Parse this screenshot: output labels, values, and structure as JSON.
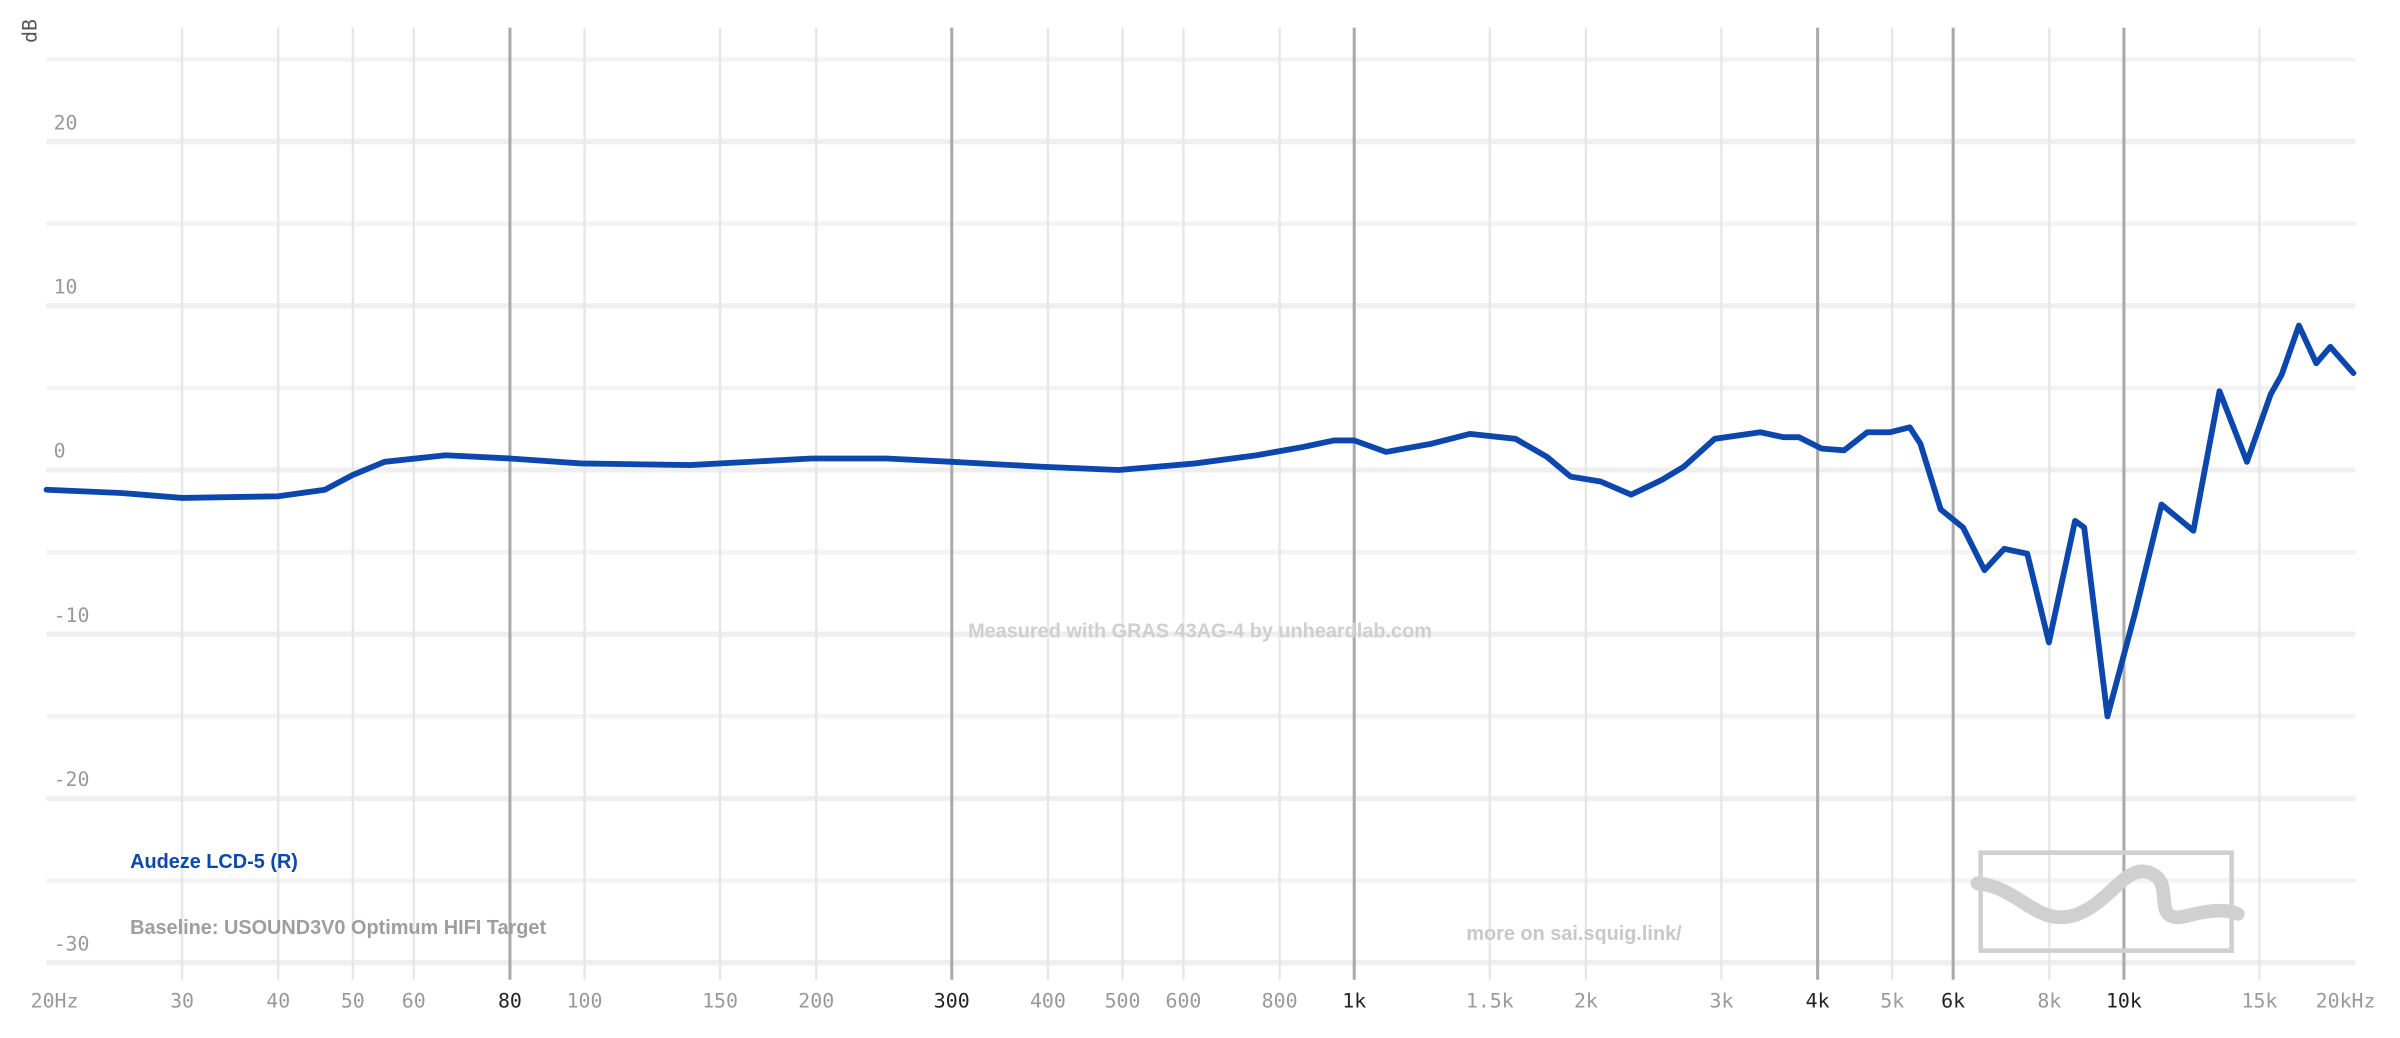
{
  "chart_data": {
    "type": "line",
    "y_label": "dB",
    "watermark": "Measured with GRAS 43AG-4 by unheardlab.com",
    "baseline": "Baseline: USOUND3V0 Optimum HIFI Target",
    "annotation": "more on sai.squig.link/",
    "x_scale": "log",
    "xlim": [
      20,
      20000
    ],
    "ylim": [
      -31,
      27
    ],
    "xticks": [
      {
        "value": 20,
        "label": "20Hz"
      },
      30,
      40,
      50,
      60,
      80,
      100,
      150,
      200,
      300,
      400,
      500,
      600,
      800,
      {
        "value": 1000,
        "label": "1k"
      },
      {
        "value": 1500,
        "label": "1.5k"
      },
      {
        "value": 2000,
        "label": "2k"
      },
      {
        "value": 3000,
        "label": "3k"
      },
      {
        "value": 4000,
        "label": "4k"
      },
      {
        "value": 5000,
        "label": "5k"
      },
      {
        "value": 6000,
        "label": "6k"
      },
      {
        "value": 8000,
        "label": "8k"
      },
      {
        "value": 10000,
        "label": "10k"
      },
      {
        "value": 15000,
        "label": "15k"
      },
      {
        "value": 20000,
        "label": "20kHz"
      }
    ],
    "x_major_ticks": [
      80,
      300,
      1000,
      4000,
      6000,
      10000
    ],
    "yticks": [
      20,
      10,
      0,
      -10,
      -20,
      -30
    ],
    "y_minor_grid": [
      25,
      15,
      5,
      -5,
      -15,
      -25
    ],
    "grid": true,
    "x": [
      20,
      25,
      30,
      40,
      46,
      50,
      55,
      66,
      80,
      99,
      137,
      197,
      247,
      300,
      393,
      494,
      621,
      747,
      858,
      941,
      1000,
      1100,
      1260,
      1413,
      1620,
      1780,
      1910,
      2090,
      2290,
      2510,
      2680,
      2940,
      3370,
      3610,
      3780,
      4050,
      4330,
      4640,
      4970,
      5270,
      5440,
      5780,
      6180,
      6590,
      6990,
      7490,
      7990,
      8640,
      8880,
      9520,
      10340,
      11190,
      12310,
      13310,
      14450,
      15510,
      16030,
      16880,
      17780,
      18540,
      19870
    ],
    "series": [
      {
        "name": "Audeze LCD-5 (R)",
        "color": "#0b47ad",
        "values": [
          -1.2,
          -1.4,
          -1.7,
          -1.6,
          -1.2,
          -0.3,
          0.5,
          0.9,
          0.7,
          0.4,
          0.3,
          0.7,
          0.7,
          0.5,
          0.2,
          0.0,
          0.4,
          0.9,
          1.4,
          1.8,
          1.8,
          1.1,
          1.6,
          2.2,
          1.9,
          0.8,
          -0.4,
          -0.7,
          -1.5,
          -0.6,
          0.2,
          1.9,
          2.3,
          2.0,
          2.0,
          1.3,
          1.2,
          2.3,
          2.3,
          2.6,
          1.6,
          -2.4,
          -3.5,
          -6.1,
          -4.8,
          -5.1,
          -10.5,
          -3.1,
          -3.5,
          -15,
          -8.7,
          -2.1,
          -3.7,
          4.8,
          0.5,
          4.6,
          5.8,
          8.8,
          6.5,
          7.5,
          5.9
        ]
      }
    ]
  }
}
